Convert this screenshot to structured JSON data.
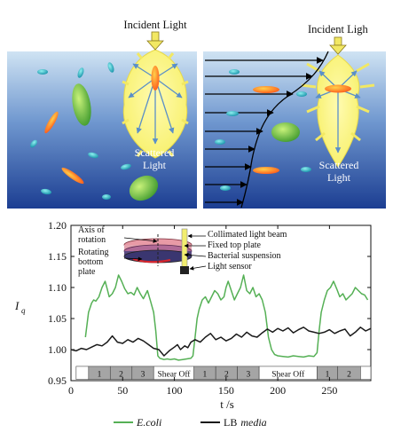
{
  "top_left": {
    "incident_label": "Incident Light",
    "scattered_line1": "Scattered",
    "scattered_line2": "Light"
  },
  "top_right": {
    "incident_label": "Incident Ligh",
    "scattered_line1": "Scattered",
    "scattered_line2": "Light"
  },
  "inset": {
    "axis_label_line1": "Axis of",
    "axis_label_line2": "rotation",
    "rotating_line1": "Rotating",
    "rotating_line2": "bottom",
    "rotating_line3": "plate",
    "collimated": "Collimated light beam",
    "fixed_top": "Fixed top plate",
    "suspension": "Bacterial suspension",
    "sensor": "Light sensor"
  },
  "colors": {
    "ecoli": "#55b055",
    "lb": "#1a1a1a",
    "bg_top": "#cfe3f3",
    "bg_bottom": "#1c3e92",
    "scatter": "#f7f06a"
  },
  "chart_data": {
    "type": "line",
    "xlabel": "t /s",
    "ylabel": "I",
    "ylabel_sub": "q",
    "xlim": [
      0,
      290
    ],
    "ylim": [
      0.95,
      1.2
    ],
    "x_ticks": [
      0,
      50,
      100,
      150,
      200,
      250
    ],
    "y_ticks": [
      0.95,
      1.0,
      1.05,
      1.1,
      1.15,
      1.2
    ],
    "x_tick_labels": [
      "0",
      "50",
      "100",
      "150",
      "200",
      "250"
    ],
    "y_tick_labels": [
      "0.95",
      "1.00",
      "1.05",
      "1.10",
      "1.15",
      "1.20"
    ],
    "legend": [
      {
        "label": "E.coli",
        "italic": true
      },
      {
        "label": "LB",
        "italic_suffix": "media"
      }
    ],
    "segments": [
      {
        "label": "",
        "x0": 5,
        "x1": 17
      },
      {
        "label": "1",
        "x0": 17,
        "x1": 38
      },
      {
        "label": "2",
        "x0": 38,
        "x1": 59
      },
      {
        "label": "3",
        "x0": 59,
        "x1": 80
      },
      {
        "label": "Shear Off",
        "x0": 80,
        "x1": 119
      },
      {
        "label": "1",
        "x0": 119,
        "x1": 140
      },
      {
        "label": "2",
        "x0": 140,
        "x1": 161
      },
      {
        "label": "3",
        "x0": 161,
        "x1": 182
      },
      {
        "label": "Shear Off",
        "x0": 182,
        "x1": 238
      },
      {
        "label": "1",
        "x0": 238,
        "x1": 258
      },
      {
        "label": "2",
        "x0": 258,
        "x1": 280
      },
      {
        "label": "",
        "x0": 280,
        "x1": 290
      }
    ],
    "series": [
      {
        "name": "E.coli",
        "x": [
          14,
          17,
          20,
          22,
          24,
          27,
          30,
          33,
          35,
          37,
          40,
          43,
          46,
          49,
          52,
          55,
          58,
          61,
          64,
          67,
          70,
          74,
          77,
          80,
          82,
          84,
          86,
          88,
          90,
          93,
          96,
          100,
          104,
          108,
          112,
          116,
          118,
          120,
          122,
          124,
          127,
          130,
          133,
          136,
          139,
          142,
          145,
          148,
          150,
          152,
          155,
          158,
          161,
          164,
          167,
          170,
          173,
          176,
          179,
          182,
          185,
          188,
          191,
          194,
          197,
          200,
          205,
          210,
          215,
          220,
          225,
          230,
          235,
          238,
          240,
          242,
          245,
          248,
          251,
          254,
          257,
          260,
          263,
          266,
          269,
          272,
          275,
          278,
          281,
          284,
          287
        ],
        "y": [
          1.02,
          1.06,
          1.075,
          1.08,
          1.078,
          1.085,
          1.1,
          1.11,
          1.098,
          1.085,
          1.09,
          1.1,
          1.12,
          1.11,
          1.098,
          1.09,
          1.092,
          1.088,
          1.1,
          1.09,
          1.082,
          1.095,
          1.078,
          1.06,
          1.03,
          0.99,
          0.986,
          0.985,
          0.984,
          0.985,
          0.984,
          0.985,
          0.983,
          0.984,
          0.985,
          0.986,
          0.99,
          1.02,
          1.05,
          1.065,
          1.08,
          1.085,
          1.075,
          1.085,
          1.095,
          1.09,
          1.08,
          1.085,
          1.1,
          1.11,
          1.095,
          1.08,
          1.09,
          1.1,
          1.12,
          1.095,
          1.09,
          1.1,
          1.085,
          1.09,
          1.08,
          1.06,
          1.02,
          1.0,
          0.992,
          0.99,
          0.989,
          0.988,
          0.99,
          0.989,
          0.988,
          0.99,
          0.989,
          0.995,
          1.03,
          1.06,
          1.08,
          1.095,
          1.1,
          1.11,
          1.098,
          1.085,
          1.09,
          1.08,
          1.085,
          1.09,
          1.1,
          1.095,
          1.09,
          1.088,
          1.08
        ]
      },
      {
        "name": "LB media",
        "x": [
          0,
          5,
          10,
          15,
          20,
          25,
          30,
          35,
          40,
          45,
          50,
          55,
          60,
          65,
          70,
          75,
          80,
          85,
          90,
          95,
          100,
          103,
          106,
          110,
          113,
          116,
          120,
          125,
          130,
          135,
          140,
          145,
          150,
          155,
          160,
          165,
          170,
          175,
          180,
          185,
          190,
          195,
          200,
          205,
          210,
          215,
          220,
          225,
          230,
          235,
          240,
          245,
          250,
          255,
          260,
          265,
          270,
          275,
          280,
          285,
          290
        ],
        "y": [
          1.0,
          0.998,
          1.002,
          1.0,
          1.004,
          1.008,
          1.006,
          1.012,
          1.022,
          1.012,
          1.01,
          1.016,
          1.012,
          1.018,
          1.014,
          1.008,
          1.002,
          1.0,
          0.99,
          0.998,
          1.004,
          1.008,
          1.0,
          1.006,
          1.003,
          1.012,
          1.016,
          1.012,
          1.02,
          1.026,
          1.016,
          1.02,
          1.014,
          1.018,
          1.025,
          1.02,
          1.028,
          1.022,
          1.02,
          1.027,
          1.033,
          1.028,
          1.034,
          1.03,
          1.035,
          1.027,
          1.032,
          1.036,
          1.03,
          1.028,
          1.026,
          1.028,
          1.032,
          1.026,
          1.03,
          1.033,
          1.022,
          1.028,
          1.036,
          1.03,
          1.034
        ]
      }
    ]
  }
}
